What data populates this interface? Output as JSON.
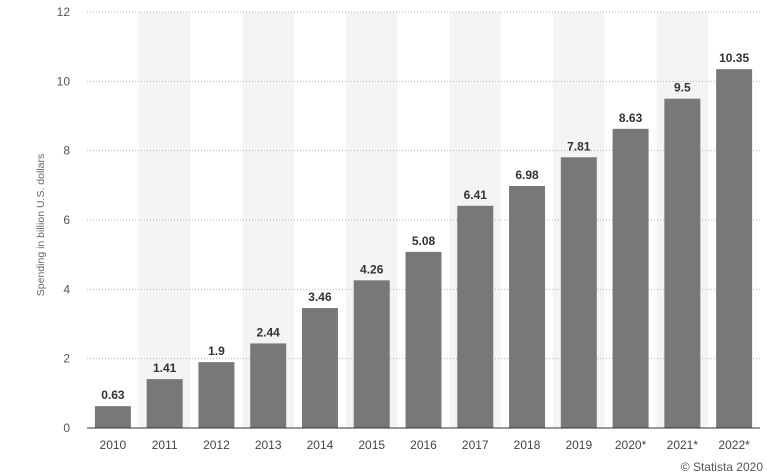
{
  "chart_data": {
    "type": "bar",
    "categories": [
      "2010",
      "2011",
      "2012",
      "2013",
      "2014",
      "2015",
      "2016",
      "2017",
      "2018",
      "2019",
      "2020*",
      "2021*",
      "2022*"
    ],
    "values": [
      0.63,
      1.41,
      1.9,
      2.44,
      3.46,
      4.26,
      5.08,
      6.41,
      6.98,
      7.81,
      8.63,
      9.5,
      10.35
    ],
    "value_labels": [
      "0.63",
      "1.41",
      "1.9",
      "2.44",
      "3.46",
      "4.26",
      "5.08",
      "6.41",
      "6.98",
      "7.81",
      "8.63",
      "9.5",
      "10.35"
    ],
    "title": "",
    "xlabel": "",
    "ylabel": "Spending in billion U.S. dollars",
    "ylim": [
      0,
      12
    ],
    "yticks": [
      "0",
      "2",
      "4",
      "6",
      "8",
      "10",
      "12"
    ],
    "grid": true,
    "bar_color": "#787878",
    "alt_band_color": "#f4f4f4"
  },
  "credit": "© Statista 2020"
}
